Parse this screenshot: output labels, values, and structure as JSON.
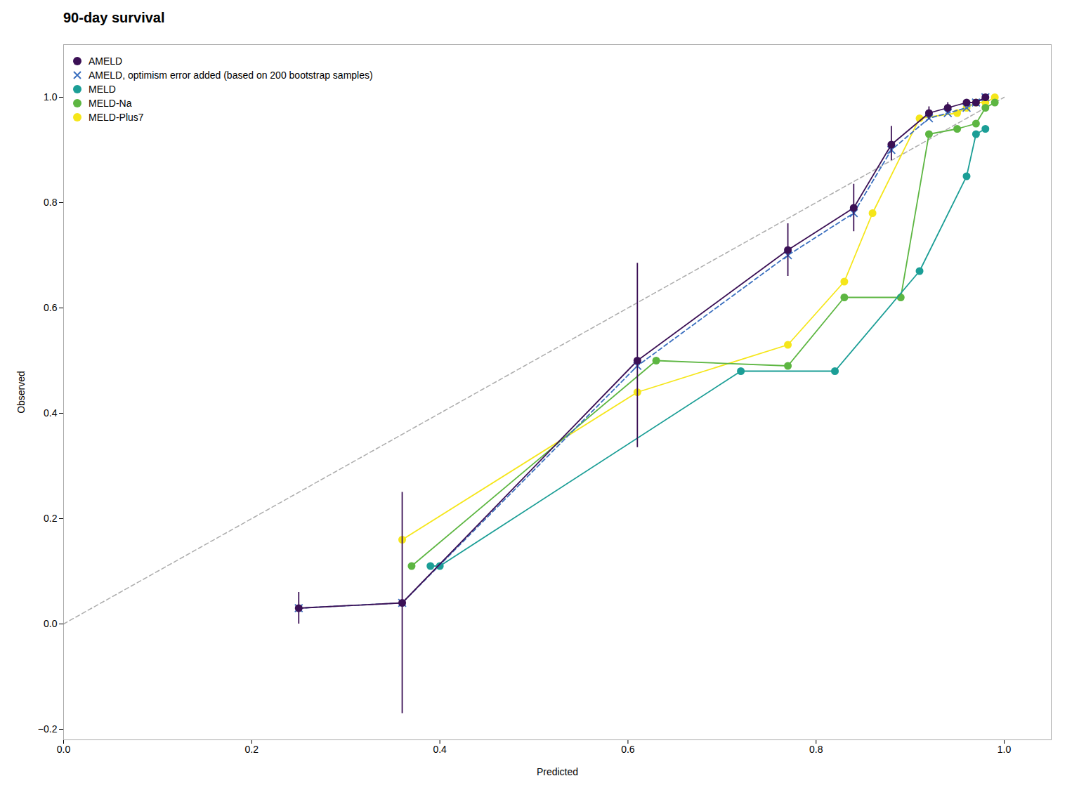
{
  "chart_data": {
    "type": "line",
    "title": "90-day survival",
    "x_label": "Predicted",
    "y_label": "Observed",
    "xlim": [
      0.0,
      1.05
    ],
    "ylim": [
      -0.22,
      1.1
    ],
    "xticks": [
      {
        "value": 0.0,
        "label": "0.0"
      },
      0.2,
      0.4,
      0.6,
      0.8,
      {
        "value": 1.0,
        "label": "1.0"
      }
    ],
    "yticks": [
      {
        "value": -0.2,
        "label": "−0.2"
      },
      {
        "value": 0.0,
        "label": "0.0"
      },
      0.2,
      0.4,
      0.6,
      0.8,
      {
        "value": 1.0,
        "label": "1.0"
      }
    ],
    "grid": false,
    "legend": "upper left",
    "series": [
      {
        "name": "AMELD",
        "color": "#3b1055",
        "marker": "circle",
        "line_style": "solid",
        "x": [
          0.25,
          0.36,
          0.61,
          0.77,
          0.84,
          0.88,
          0.92,
          0.94,
          0.96,
          0.97,
          0.98
        ],
        "values": [
          0.03,
          0.04,
          0.5,
          0.71,
          0.79,
          0.91,
          0.97,
          0.98,
          0.99,
          0.99,
          1.0
        ],
        "yerr_lo": [
          0.03,
          0.21,
          0.165,
          0.05,
          0.045,
          0.03,
          0.012,
          0.01,
          0.005,
          0.005,
          0.003
        ],
        "yerr_hi": [
          0.03,
          0.21,
          0.185,
          0.05,
          0.045,
          0.035,
          0.012,
          0.01,
          0.005,
          0.005,
          0.003
        ]
      },
      {
        "name": "AMELD, optimism error added (based on 200 bootstrap samples)",
        "color": "#3a6fbf",
        "marker": "x",
        "line_style": "dashed",
        "x": [
          0.25,
          0.36,
          0.61,
          0.77,
          0.84,
          0.88,
          0.92,
          0.94,
          0.96,
          0.97,
          0.98
        ],
        "values": [
          0.03,
          0.04,
          0.49,
          0.7,
          0.78,
          0.9,
          0.96,
          0.97,
          0.98,
          0.99,
          1.0
        ]
      },
      {
        "name": "MELD",
        "color": "#1b9e96",
        "marker": "circle",
        "line_style": "solid",
        "x": [
          0.39,
          0.4,
          0.72,
          0.82,
          0.91,
          0.96,
          0.97,
          0.98
        ],
        "values": [
          0.11,
          0.11,
          0.48,
          0.48,
          0.67,
          0.85,
          0.93,
          0.94
        ]
      },
      {
        "name": "MELD-Na",
        "color": "#5db642",
        "marker": "circle",
        "line_style": "solid",
        "x": [
          0.37,
          0.63,
          0.77,
          0.83,
          0.89,
          0.92,
          0.95,
          0.97,
          0.98,
          0.99
        ],
        "values": [
          0.11,
          0.5,
          0.49,
          0.62,
          0.62,
          0.93,
          0.94,
          0.95,
          0.98,
          0.99
        ]
      },
      {
        "name": "MELD-Plus7",
        "color": "#f5e61a",
        "marker": "circle",
        "line_style": "solid",
        "x": [
          0.36,
          0.61,
          0.77,
          0.83,
          0.86,
          0.91,
          0.95,
          0.96,
          0.97,
          0.98,
          0.99
        ],
        "values": [
          0.16,
          0.44,
          0.53,
          0.65,
          0.78,
          0.96,
          0.97,
          0.98,
          0.99,
          0.99,
          1.0
        ]
      },
      {
        "color": "gray",
        "marker": "none",
        "line_style": "dashed",
        "x": [
          0,
          1
        ],
        "values": [
          0,
          1
        ]
      }
    ]
  }
}
